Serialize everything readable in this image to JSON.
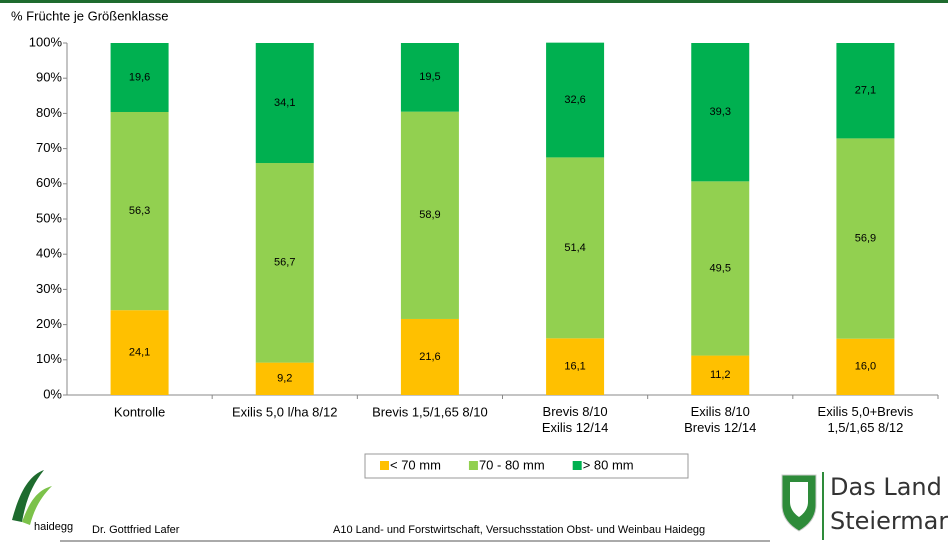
{
  "chart_data": {
    "type": "stacked-bar",
    "y_label": "% Früchte je Größenklasse",
    "categories": [
      "Kontrolle",
      "Exilis 5,0 l/ha 8/12",
      "Brevis 1,5/1,65 8/10",
      "Brevis 8/10\nExilis 12/14",
      "Exilis 8/10\nBrevis 12/14",
      "Exilis 5,0+Brevis\n1,5/1,65 8/12"
    ],
    "series": [
      {
        "name": "< 70 mm",
        "color": "#FFC000",
        "values": [
          24.1,
          9.2,
          21.6,
          16.1,
          11.2,
          16.0
        ],
        "value_labels": [
          "24,1",
          "9,2",
          "21,6",
          "16,1",
          "11,2",
          "16,0"
        ]
      },
      {
        "name": "70 - 80 mm",
        "color": "#92D050",
        "values": [
          56.3,
          56.7,
          58.9,
          51.4,
          49.5,
          56.9
        ],
        "value_labels": [
          "56,3",
          "56,7",
          "58,9",
          "51,4",
          "49,5",
          "56,9"
        ]
      },
      {
        "name": "> 80 mm",
        "color": "#00B050",
        "values": [
          19.6,
          34.1,
          19.5,
          32.6,
          39.3,
          27.1
        ],
        "value_labels": [
          "19,6",
          "34,1",
          "19,5",
          "32,6",
          "39,3",
          "27,1"
        ]
      }
    ],
    "ylim": [
      0,
      100
    ],
    "yticks": [
      {
        "value": 0,
        "label": "0%"
      },
      {
        "value": 10,
        "label": "10%"
      },
      {
        "value": 20,
        "label": "20%"
      },
      {
        "value": 30,
        "label": "30%"
      },
      {
        "value": 40,
        "label": "40%"
      },
      {
        "value": 50,
        "label": "50%"
      },
      {
        "value": 60,
        "label": "60%"
      },
      {
        "value": 70,
        "label": "70%"
      },
      {
        "value": 80,
        "label": "80%"
      },
      {
        "value": 90,
        "label": "90%"
      },
      {
        "value": 100,
        "label": "100%"
      }
    ],
    "grid": false,
    "legend": "bottom"
  },
  "footer": {
    "logo": "haidegg",
    "author": "Dr. Gottfried Lafer",
    "institution": "A10 Land- und Forstwirtschaft, Versuchsstation Obst- und Weinbau Haidegg",
    "brand_line1": "Das Land",
    "brand_line2": "Steiermark"
  }
}
